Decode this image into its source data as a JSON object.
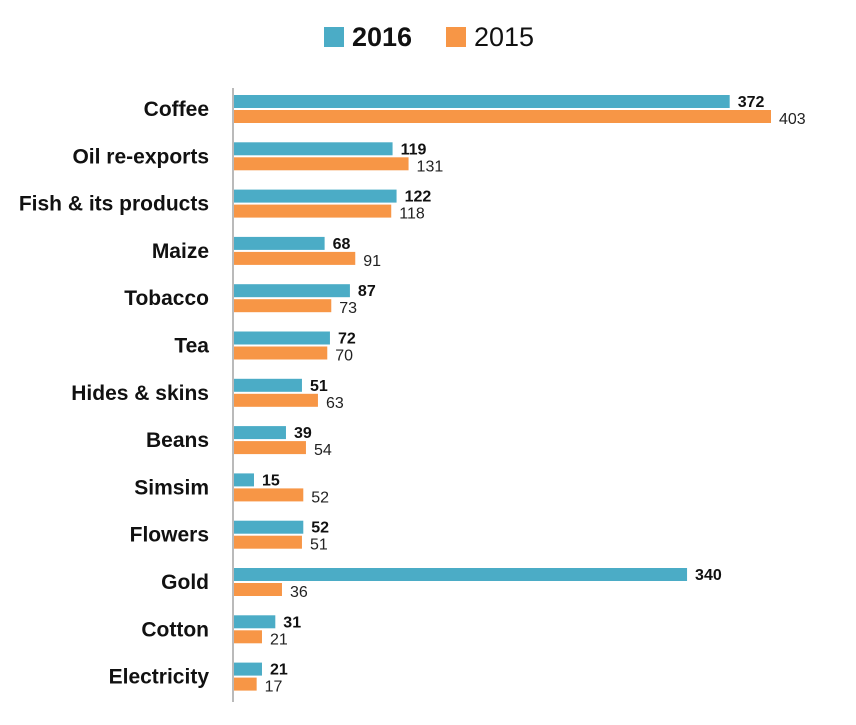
{
  "chart_data": {
    "type": "bar",
    "orientation": "horizontal",
    "title": "",
    "xlabel": "",
    "ylabel": "",
    "legend_position": "top-center",
    "grid": false,
    "categories": [
      "Coffee",
      "Oil re-exports",
      "Fish & its products",
      "Maize",
      "Tobacco",
      "Tea",
      "Hides & skins",
      "Beans",
      "Simsim",
      "Flowers",
      "Gold",
      "Cotton",
      "Electricity"
    ],
    "series": [
      {
        "name": "2016",
        "color": "#4BACC6",
        "values": [
          372,
          119,
          122,
          68,
          87,
          72,
          51,
          39,
          15,
          52,
          340,
          31,
          21
        ]
      },
      {
        "name": "2015",
        "color": "#F79646",
        "values": [
          403,
          131,
          118,
          91,
          73,
          70,
          63,
          54,
          52,
          51,
          36,
          21,
          17
        ]
      }
    ],
    "xlim": [
      0,
      410
    ]
  }
}
